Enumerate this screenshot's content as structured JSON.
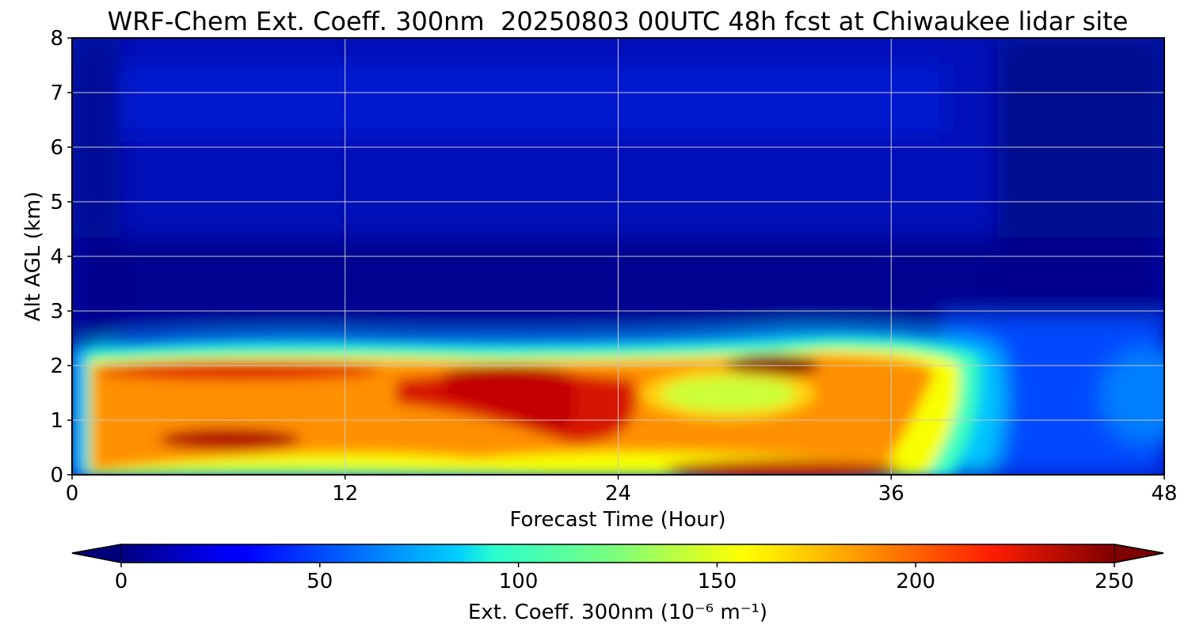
{
  "chart_data": {
    "type": "heatmap",
    "title": "WRF-Chem Ext. Coeff. 300nm  20250803 00UTC 48h fcst at Chiwaukee lidar site",
    "xlabel": "Forecast Time (Hour)",
    "ylabel": "Alt AGL (km)",
    "xlim": [
      0,
      48
    ],
    "ylim": [
      0,
      8
    ],
    "xticks": [
      "0",
      "12",
      "24",
      "36",
      "48"
    ],
    "yticks": [
      "0",
      "1",
      "2",
      "3",
      "4",
      "5",
      "6",
      "7",
      "8"
    ],
    "grid": true,
    "colormap": "jet",
    "colorbar": {
      "label": "Ext. Coeff. 300nm  (10⁻⁶ m⁻¹)",
      "range": [
        0,
        250
      ],
      "ticks": [
        "0",
        "50",
        "100",
        "150",
        "200",
        "250"
      ],
      "extend": "both",
      "placement": "bottom"
    },
    "field_features": [
      {
        "name": "aerosol layer",
        "x": [
          1,
          40
        ],
        "y": [
          0,
          2.4
        ],
        "value": 180
      },
      {
        "name": "max core",
        "x": [
          17,
          22
        ],
        "y": [
          1.0,
          1.9
        ],
        "value": 250
      },
      {
        "name": "elevated max",
        "x": [
          28,
          33
        ],
        "y": [
          1.7,
          2.2
        ],
        "value": 250
      },
      {
        "name": "low layer",
        "x": [
          5,
          10
        ],
        "y": [
          0.4,
          0.7
        ],
        "value": 245
      },
      {
        "name": "surface max",
        "x": [
          27,
          37
        ],
        "y": [
          0,
          0.2
        ],
        "value": 240
      },
      {
        "name": "clean region",
        "x": [
          40,
          48
        ],
        "y": [
          0,
          2.5
        ],
        "value": 55
      },
      {
        "name": "upper troposphere",
        "x": [
          0,
          48
        ],
        "y": [
          2.8,
          8
        ],
        "value": 12
      }
    ]
  }
}
